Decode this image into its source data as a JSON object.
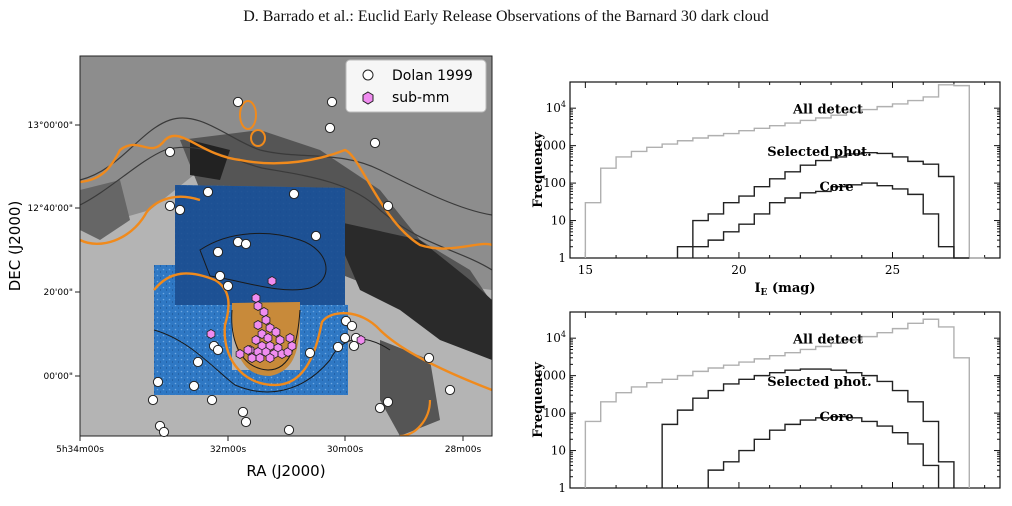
{
  "header": {
    "running_title": "D. Barrado et al.: Euclid Early Release Observations of the Barnard 30 dark cloud"
  },
  "map": {
    "xlabel": "RA (J2000)",
    "ylabel": "DEC (J2000)",
    "x_ticks": [
      "5h34m00s",
      "32m00s",
      "30m00s",
      "28m00s"
    ],
    "y_ticks": [
      "13°00'00\"",
      "12°40'00\"",
      "20'00\"",
      "00'00\""
    ],
    "legend": [
      {
        "label": "Dolan 1999",
        "marker": "circle",
        "color": "#ffffff"
      },
      {
        "label": "sub-mm",
        "marker": "hexagon",
        "color": "#f08cf0"
      }
    ],
    "colors": {
      "contour_orange": "#f08a1c",
      "euclid_blue": "#1f5ea8",
      "submm_pink": "#f08cf0"
    }
  },
  "chart_data": [
    {
      "type": "histogram",
      "xlabel": "I_E (mag)",
      "ylabel": "Frequency",
      "y_scale": "log",
      "xlim": [
        14.5,
        28.5
      ],
      "ylim": [
        1,
        50000
      ],
      "x_ticks": [
        15,
        20,
        25
      ],
      "y_ticks": [
        "1",
        "10",
        "100",
        "1000",
        "10^4"
      ],
      "series": [
        {
          "name": "All detect",
          "color": "#b0b0b0",
          "x": [
            15.0,
            15.5,
            16.0,
            16.5,
            17.0,
            17.5,
            18.0,
            18.5,
            19.0,
            19.5,
            20.0,
            20.5,
            21.0,
            21.5,
            22.0,
            22.5,
            23.0,
            23.5,
            24.0,
            24.5,
            25.0,
            25.5,
            26.0,
            26.5,
            27.0,
            27.5
          ],
          "values": [
            30,
            250,
            500,
            700,
            900,
            1100,
            1350,
            1600,
            1850,
            2100,
            2500,
            2900,
            3400,
            4000,
            4700,
            5500,
            6500,
            7800,
            9200,
            11000,
            13000,
            16000,
            20000,
            42000,
            40000,
            1
          ]
        },
        {
          "name": "Selected phot.",
          "color": "#222222",
          "x": [
            18.0,
            18.5,
            19.0,
            19.5,
            20.0,
            20.5,
            21.0,
            21.5,
            22.0,
            22.5,
            23.0,
            23.5,
            24.0,
            24.5,
            25.0,
            25.5,
            26.0,
            26.5,
            27.0
          ],
          "values": [
            2,
            10,
            15,
            30,
            45,
            80,
            130,
            200,
            300,
            400,
            500,
            600,
            650,
            620,
            500,
            380,
            320,
            150,
            1
          ]
        },
        {
          "name": "Core",
          "color": "#222222",
          "x": [
            18.5,
            19.0,
            19.5,
            20.0,
            20.5,
            21.0,
            21.5,
            22.0,
            22.5,
            23.0,
            23.5,
            24.0,
            24.5,
            25.0,
            25.5,
            26.0,
            26.5
          ],
          "values": [
            2,
            3,
            5,
            8,
            15,
            30,
            40,
            55,
            60,
            80,
            90,
            100,
            85,
            70,
            50,
            15,
            2
          ]
        }
      ]
    },
    {
      "type": "histogram",
      "xlabel": "",
      "ylabel": "Frequency",
      "y_scale": "log",
      "xlim": [
        14.5,
        28.5
      ],
      "ylim": [
        1,
        50000
      ],
      "y_ticks": [
        "1",
        "10",
        "100",
        "1000",
        "10^4"
      ],
      "series": [
        {
          "name": "All detect",
          "color": "#b0b0b0",
          "x": [
            15.0,
            15.5,
            16.0,
            16.5,
            17.0,
            17.5,
            18.0,
            18.5,
            19.0,
            19.5,
            20.0,
            20.5,
            21.0,
            21.5,
            22.0,
            22.5,
            23.0,
            23.5,
            24.0,
            24.5,
            25.0,
            25.5,
            26.0,
            26.5,
            27.0
          ],
          "values": [
            60,
            200,
            350,
            500,
            650,
            800,
            1000,
            1300,
            1600,
            1900,
            2300,
            2800,
            3400,
            4100,
            5000,
            6000,
            7300,
            9000,
            11000,
            14000,
            18000,
            25000,
            32000,
            20000,
            3000
          ]
        },
        {
          "name": "Selected phot.",
          "color": "#222222",
          "x": [
            17.5,
            18.0,
            18.5,
            19.0,
            19.5,
            20.0,
            20.5,
            21.0,
            21.5,
            22.0,
            22.5,
            23.0,
            23.5,
            24.0,
            24.5,
            25.0,
            25.5,
            26.0,
            26.5
          ],
          "values": [
            50,
            120,
            250,
            400,
            600,
            800,
            1000,
            1200,
            1400,
            1500,
            1500,
            1400,
            1200,
            1000,
            700,
            400,
            200,
            60,
            5
          ]
        },
        {
          "name": "Core",
          "color": "#222222",
          "x": [
            19.0,
            19.5,
            20.0,
            20.5,
            21.0,
            21.5,
            22.0,
            22.5,
            23.0,
            23.5,
            24.0,
            24.5,
            25.0,
            25.5,
            26.0
          ],
          "values": [
            3,
            5,
            10,
            20,
            35,
            50,
            65,
            75,
            80,
            75,
            60,
            45,
            30,
            15,
            4
          ]
        }
      ]
    }
  ]
}
